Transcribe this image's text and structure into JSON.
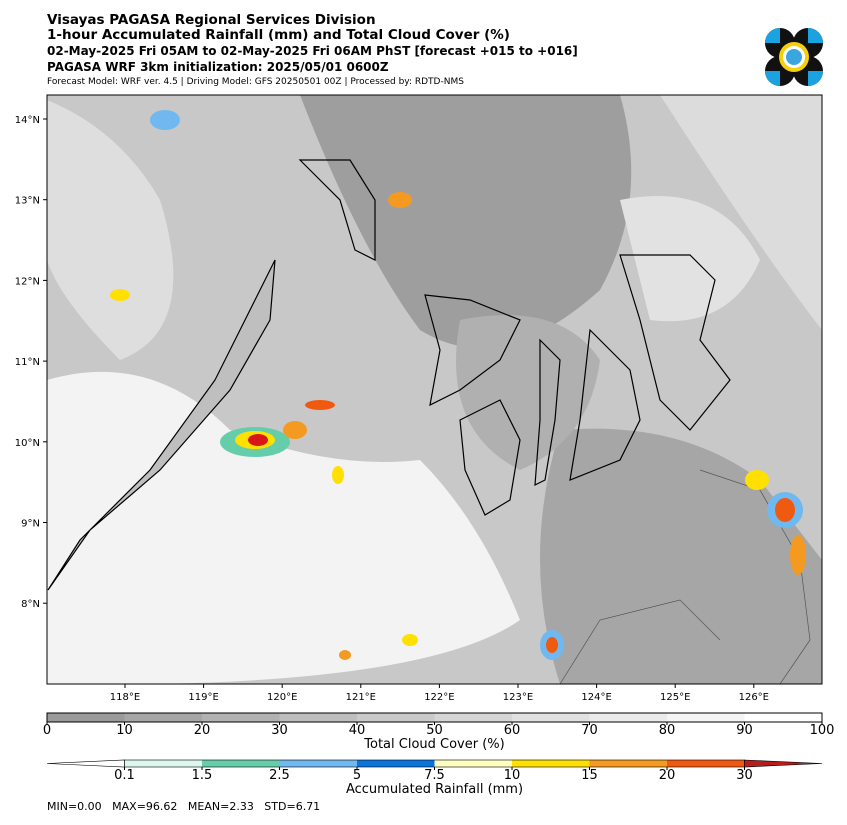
{
  "header": {
    "title": "Visayas PAGASA Regional Services Division",
    "subtitle": "1-hour Accumulated Rainfall (mm) and Total Cloud Cover (%)",
    "period": "02-May-2025 Fri 05AM to 02-May-2025 Fri 06AM PhST [forecast +015 to +016]",
    "init": "PAGASA WRF 3km initialization: 2025/05/01 0600Z",
    "model": "Forecast Model: WRF ver. 4.5 | Driving Model: GFS 20250501 00Z | Processed by: RDTD-NMS"
  },
  "map": {
    "lat_labels": [
      "14°N",
      "13°N",
      "12°N",
      "11°N",
      "10°N",
      "9°N",
      "8°N"
    ],
    "lon_labels": [
      "118°E",
      "119°E",
      "120°E",
      "121°E",
      "122°E",
      "123°E",
      "124°E",
      "125°E",
      "126°E"
    ]
  },
  "cloud_cover": {
    "label": "Total Cloud Cover (%)",
    "lim": [
      0,
      100
    ],
    "ticks": [
      0,
      10,
      20,
      30,
      40,
      50,
      60,
      70,
      80,
      90,
      100
    ],
    "colors": [
      "#9a9a9a",
      "#a6a6a6",
      "#b2b2b2",
      "#bebebe",
      "#cacaca",
      "#d6d6d6",
      "#e1e1e1",
      "#ebebeb",
      "#f5f5f5",
      "#ffffff"
    ]
  },
  "rainfall": {
    "label": "Accumulated Rainfall (mm)",
    "ticks": [
      "0.1",
      "1.5",
      "2.5",
      "5",
      "7.5",
      "10",
      "15",
      "20",
      "30"
    ],
    "colors": [
      "#ffffff",
      "#dcf7ee",
      "#66cdaa",
      "#70b8f0",
      "#0a74da",
      "#ffffc0",
      "#ffe000",
      "#f59a20",
      "#f05a10",
      "#b81c1c"
    ]
  },
  "stats": "MIN=0.00   MAX=96.62   MEAN=2.33   STD=6.71"
}
